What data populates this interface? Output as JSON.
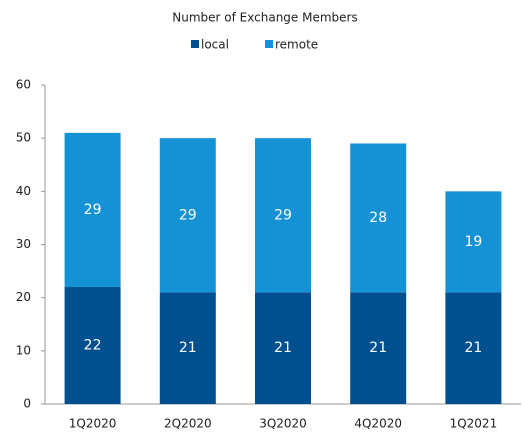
{
  "chart_data": {
    "type": "stacked_bar",
    "title": "Number of Exchange Members",
    "categories": [
      "1Q2020",
      "2Q2020",
      "3Q2020",
      "4Q2020",
      "1Q2021"
    ],
    "series": [
      {
        "name": "local",
        "color": "#004f8f",
        "values": [
          22,
          21,
          21,
          21,
          21
        ]
      },
      {
        "name": "remote",
        "color": "#1592d6",
        "values": [
          29,
          29,
          29,
          28,
          19
        ]
      }
    ],
    "ylim": [
      0,
      60
    ],
    "yticks": [
      0,
      10,
      20,
      30,
      40,
      50,
      60
    ],
    "grid": false,
    "legend": "top"
  }
}
